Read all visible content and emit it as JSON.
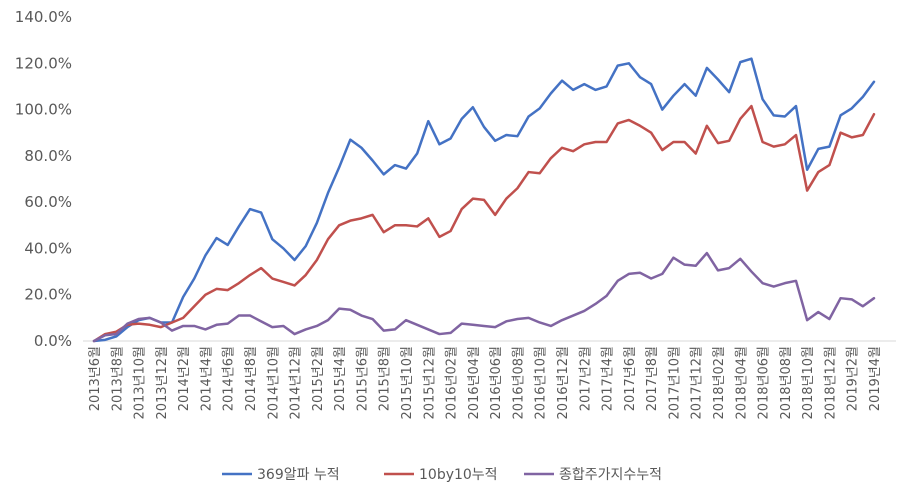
{
  "chart_data": {
    "type": "line",
    "title": "",
    "xlabel": "",
    "ylabel": "",
    "ylim": [
      0,
      140
    ],
    "y_tick_values": [
      0,
      20,
      40,
      60,
      80,
      100,
      120,
      140
    ],
    "y_tick_labels": [
      "0.0%",
      "20.0%",
      "40.0%",
      "60.0%",
      "80.0%",
      "100.0%",
      "120.0%",
      "140.0%"
    ],
    "grid": false,
    "legend_position": "bottom",
    "categories": [
      "2013년6월",
      "2013년7월",
      "2013년8월",
      "2013년9월",
      "2013년10월",
      "2013년11월",
      "2013년12월",
      "2014년1월",
      "2014년2월",
      "2014년3월",
      "2014년4월",
      "2014년5월",
      "2014년6월",
      "2014년7월",
      "2014년8월",
      "2014년9월",
      "2014년10월",
      "2014년11월",
      "2014년12월",
      "2015년1월",
      "2015년2월",
      "2015년3월",
      "2015년4월",
      "2015년5월",
      "2015년6월",
      "2015년7월",
      "2015년8월",
      "2015년9월",
      "2015년10월",
      "2015년11월",
      "2015년12월",
      "2016년1월",
      "2016년2월",
      "2016년3월",
      "2016년4월",
      "2016년5월",
      "2016년6월",
      "2016년7월",
      "2016년8월",
      "2016년9월",
      "2016년10월",
      "2016년11월",
      "2016년12월",
      "2017년1월",
      "2017년2월",
      "2017년3월",
      "2017년4월",
      "2017년5월",
      "2017년6월",
      "2017년7월",
      "2017년8월",
      "2017년9월",
      "2017년10월",
      "2017년11월",
      "2017년12월",
      "2018년1월",
      "2018년2월",
      "2018년3월",
      "2018년4월",
      "2018년5월",
      "2018년6월",
      "2018년7월",
      "2018년8월",
      "2018년9월",
      "2018년10월",
      "2018년11월",
      "2018년12월",
      "2019년1월",
      "2019년2월",
      "2019년3월",
      "2019년4월"
    ],
    "x_tick_labels": [
      "2013년6월",
      "2013년8월",
      "2013년10월",
      "2013년12월",
      "2014년2월",
      "2014년4월",
      "2014년6월",
      "2014년8월",
      "2014년10월",
      "2014년12월",
      "2015년2월",
      "2015년4월",
      "2015년6월",
      "2015년8월",
      "2015년10월",
      "2015년12월",
      "2016년02월",
      "2016년04월",
      "2016년06월",
      "2016년08월",
      "2016년10월",
      "2016년12월",
      "2017년2월",
      "2017년4월",
      "2017년6월",
      "2017년8월",
      "2017년10월",
      "2017년12월",
      "2018년02월",
      "2018년04월",
      "2018년06월",
      "2018년08월",
      "2018년10월",
      "2018년12월",
      "2019년2월",
      "2019년4월"
    ],
    "series": [
      {
        "name": "369알파 누적",
        "color": "#4472C4",
        "values": [
          0,
          0.5,
          2,
          6,
          9,
          10,
          8,
          8,
          19,
          27,
          37,
          44.5,
          41.5,
          49.5,
          57,
          55.5,
          44,
          40,
          35,
          41,
          51,
          64,
          75,
          87,
          83.5,
          78,
          72,
          76,
          74.5,
          81,
          95,
          85,
          87.5,
          96,
          101,
          92.5,
          86.5,
          89,
          88.5,
          97,
          100.5,
          107,
          112.5,
          108.5,
          111,
          108.5,
          110,
          119,
          120,
          114,
          111,
          100,
          106,
          111,
          106,
          118,
          113,
          107.5,
          120.5,
          122,
          104.5,
          97.5,
          97,
          101.5,
          74,
          83,
          84,
          97.5,
          100.5,
          105.5,
          112
        ]
      },
      {
        "name": "10by10누적",
        "color": "#C0504D",
        "values": [
          0,
          3,
          4,
          7,
          7.5,
          7,
          6,
          8,
          10,
          15,
          20,
          22.5,
          22,
          25,
          28.5,
          31.5,
          27,
          25.5,
          24,
          28.5,
          35,
          44,
          50,
          52,
          53,
          54.5,
          47,
          50,
          50,
          49.5,
          53,
          45,
          47.5,
          57,
          61.5,
          61,
          54.5,
          61.5,
          66,
          73,
          72.5,
          79,
          83.5,
          82,
          85,
          86,
          86,
          94,
          95.5,
          93,
          90,
          82.5,
          86,
          86,
          81,
          93,
          85.5,
          86.5,
          96,
          101.5,
          86,
          84,
          85,
          89,
          65,
          73,
          76,
          90,
          88,
          89,
          98
        ]
      },
      {
        "name": "종합주가지수누적",
        "color": "#8064A2",
        "values": [
          0,
          2.5,
          3,
          7.5,
          9.5,
          10,
          8,
          4.5,
          6.5,
          6.5,
          5,
          7,
          7.5,
          11,
          11,
          8.5,
          6,
          6.5,
          3,
          5,
          6.5,
          9,
          14,
          13.5,
          11,
          9.5,
          4.5,
          5,
          9,
          7,
          5,
          3,
          3.5,
          7.5,
          7,
          6.5,
          6,
          8.5,
          9.5,
          10,
          8,
          6.5,
          9,
          11,
          13,
          16,
          19.5,
          26,
          29,
          29.5,
          27,
          29,
          36,
          33,
          32.5,
          38,
          30.5,
          31.5,
          35.5,
          30,
          25,
          23.5,
          25,
          26,
          9,
          12.5,
          9.5,
          18.5,
          18,
          15,
          18.5
        ]
      }
    ]
  }
}
